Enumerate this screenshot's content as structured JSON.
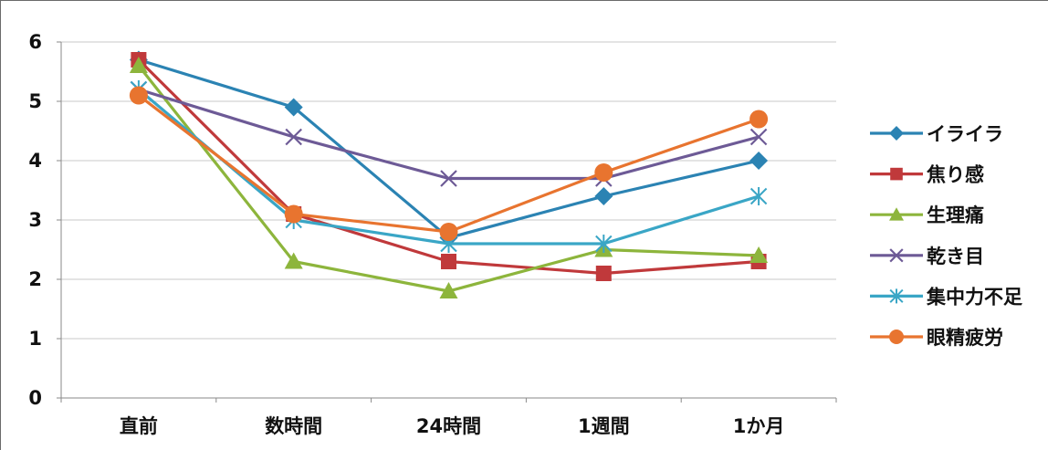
{
  "chart_data": {
    "type": "line",
    "categories": [
      "直前",
      "数時間",
      "24時間",
      "1週間",
      "1か月"
    ],
    "ylim": [
      0,
      6
    ],
    "yticks": [
      0,
      1,
      2,
      3,
      4,
      5,
      6
    ],
    "grid": true,
    "legend_position": "right",
    "series": [
      {
        "name": "イライラ",
        "color": "#2b83b3",
        "marker": "diamond",
        "values": [
          5.7,
          4.9,
          2.7,
          3.4,
          4.0
        ]
      },
      {
        "name": "焦り感",
        "color": "#c0393b",
        "marker": "square",
        "values": [
          5.7,
          3.1,
          2.3,
          2.1,
          2.3
        ]
      },
      {
        "name": "生理痛",
        "color": "#8db53c",
        "marker": "triangle",
        "values": [
          5.6,
          2.3,
          1.8,
          2.5,
          2.4
        ]
      },
      {
        "name": "乾き目",
        "color": "#6d5a96",
        "marker": "x",
        "values": [
          5.2,
          4.4,
          3.7,
          3.7,
          4.4
        ]
      },
      {
        "name": "集中力不足",
        "color": "#3aa6c6",
        "marker": "asterisk",
        "values": [
          5.2,
          3.0,
          2.6,
          2.6,
          3.4
        ]
      },
      {
        "name": "眼精疲労",
        "color": "#e8742f",
        "marker": "circle",
        "values": [
          5.1,
          3.1,
          2.8,
          3.8,
          4.7
        ]
      }
    ]
  }
}
